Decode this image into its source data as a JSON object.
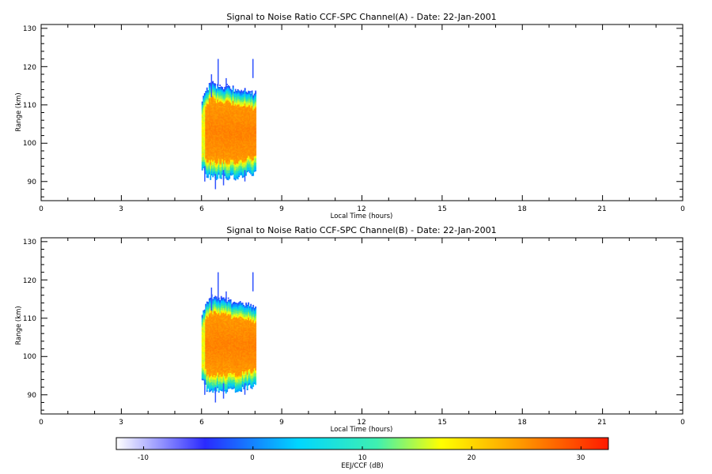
{
  "colors": {
    "colormap": [
      "#ffffff",
      "#1e3cff",
      "#00c8ff",
      "#2fe6a5",
      "#ffff00",
      "#ff9a00",
      "#ff7a00",
      "#ff2a00"
    ],
    "axis": "#000000"
  },
  "chart_data": [
    {
      "type": "heatmap",
      "title": "Signal to Noise Ratio CCF-SPC Channel(A) - Date: 22-Jan-2001",
      "xlabel": "Local Time (hours)",
      "ylabel": "Range (km)",
      "xlim": [
        0,
        24
      ],
      "ylim": [
        85,
        131
      ],
      "xticks": [
        "0",
        "3",
        "6",
        "9",
        "12",
        "15",
        "18",
        "21",
        "0"
      ],
      "yticks": [
        "90",
        "100",
        "110",
        "120",
        "130"
      ],
      "data_region": {
        "x_start": 6.0,
        "x_end": 8.0,
        "range_bottom": 93,
        "range_top": 110,
        "peak_db": 24
      }
    },
    {
      "type": "heatmap",
      "title": "Signal to Noise Ratio CCF-SPC Channel(B) - Date: 22-Jan-2001",
      "xlabel": "Local Time (hours)",
      "ylabel": "Range (km)",
      "xlim": [
        0,
        24
      ],
      "ylim": [
        85,
        131
      ],
      "xticks": [
        "0",
        "3",
        "6",
        "9",
        "12",
        "15",
        "18",
        "21",
        "0"
      ],
      "yticks": [
        "90",
        "100",
        "110",
        "120",
        "130"
      ],
      "data_region": {
        "x_start": 6.0,
        "x_end": 8.0,
        "range_bottom": 93,
        "range_top": 110,
        "peak_db": 24
      }
    }
  ],
  "colorbar": {
    "label": "EEJ/CCF (dB)",
    "ticks": [
      "-10",
      "0",
      "10",
      "20",
      "30"
    ],
    "range": [
      -12.5,
      32.5
    ]
  }
}
